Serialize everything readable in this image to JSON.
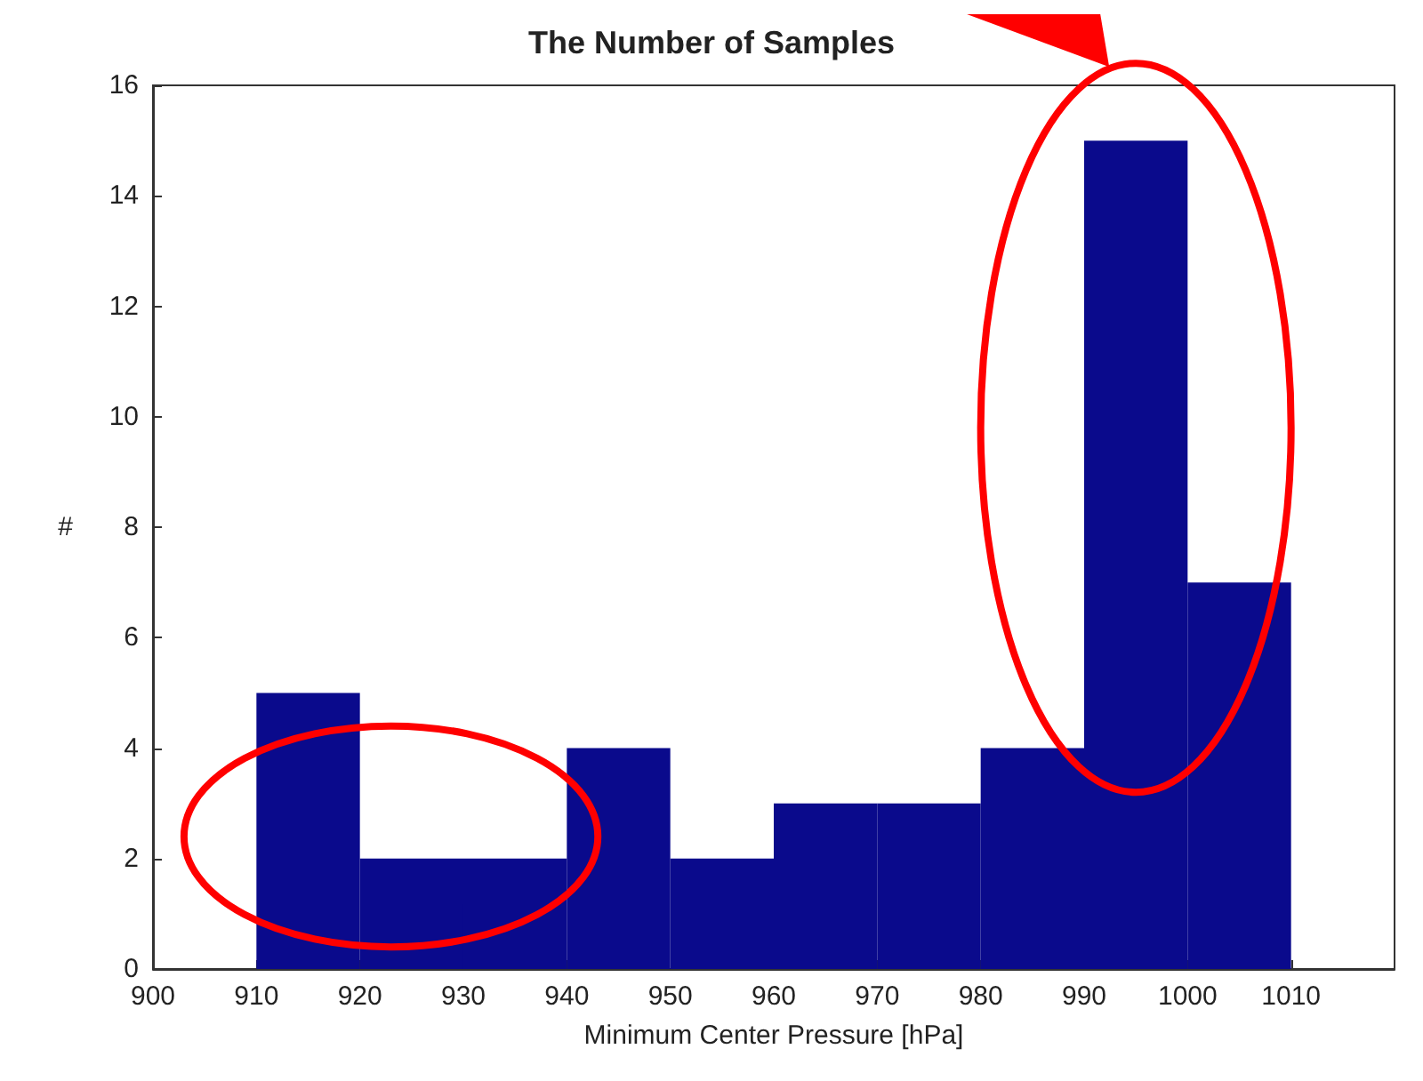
{
  "chart_data": {
    "type": "histogram",
    "title": "The Number of Samples",
    "xlabel": "Minimum Center Pressure [hPa]",
    "ylabel": "#",
    "bins": [
      910,
      920,
      930,
      940,
      950,
      960,
      970,
      980,
      990,
      1000,
      1010
    ],
    "values": [
      5,
      2,
      2,
      4,
      2,
      3,
      3,
      4,
      15,
      7
    ],
    "color": "#0a0a8c",
    "xlim": [
      900,
      1020
    ],
    "xticks": [
      900,
      910,
      920,
      930,
      940,
      950,
      960,
      970,
      980,
      990,
      1000,
      1010
    ],
    "ylim": [
      0,
      16
    ],
    "yticks": [
      0,
      2,
      4,
      6,
      8,
      10,
      12,
      14,
      16
    ],
    "grid": false
  }
}
